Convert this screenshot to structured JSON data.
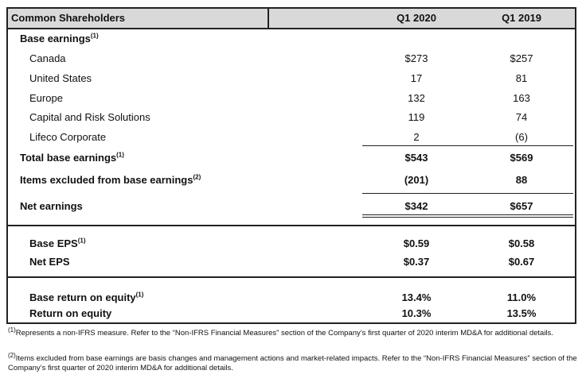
{
  "header": {
    "label": "Common Shareholders",
    "col1": "Q1 2020",
    "col2": "Q1 2019"
  },
  "base_earnings_label": "Base earnings",
  "base_earnings_note": "(1)",
  "segments": [
    {
      "label": "Canada",
      "q1_2020": "$273",
      "q1_2019": "$257"
    },
    {
      "label": "United States",
      "q1_2020": "17",
      "q1_2019": "81"
    },
    {
      "label": "Europe",
      "q1_2020": "132",
      "q1_2019": "163"
    },
    {
      "label": "Capital and Risk Solutions",
      "q1_2020": "119",
      "q1_2019": "74"
    },
    {
      "label": "Lifeco Corporate",
      "q1_2020": "2",
      "q1_2019": "(6)"
    }
  ],
  "total_base": {
    "label": "Total base earnings",
    "note": "(1)",
    "q1_2020": "$543",
    "q1_2019": "$569"
  },
  "items_excluded": {
    "label": "Items excluded from  base earnings",
    "note": "(2)",
    "q1_2020": "(201)",
    "q1_2019": "88"
  },
  "net_earnings": {
    "label": "Net earnings",
    "q1_2020": "$342",
    "q1_2019": "$657"
  },
  "base_eps": {
    "label": "Base EPS",
    "note": "(1)",
    "q1_2020": "$0.59",
    "q1_2019": "$0.58"
  },
  "net_eps": {
    "label": "Net EPS",
    "q1_2020": "$0.37",
    "q1_2019": "$0.67"
  },
  "base_roe": {
    "label": "Base return on equity",
    "note": "(1)",
    "q1_2020": "13.4%",
    "q1_2019": "11.0%"
  },
  "roe": {
    "label": "Return on equity",
    "q1_2020": "10.3%",
    "q1_2019": "13.5%"
  },
  "footnotes": [
    {
      "mark": "(1)",
      "text": "Represents a non-IFRS measure. Refer to the “Non-IFRS Financial Measures” section of the Company’s first quarter of 2020 interim MD&A for additional details."
    },
    {
      "mark": "(2)",
      "text": "Items excluded from base earnings are basis changes and management actions and market-related impacts. Refer to the “Non-IFRS Financial Measures” section of the Company’s first quarter of 2020 interim MD&A for additional details."
    }
  ]
}
